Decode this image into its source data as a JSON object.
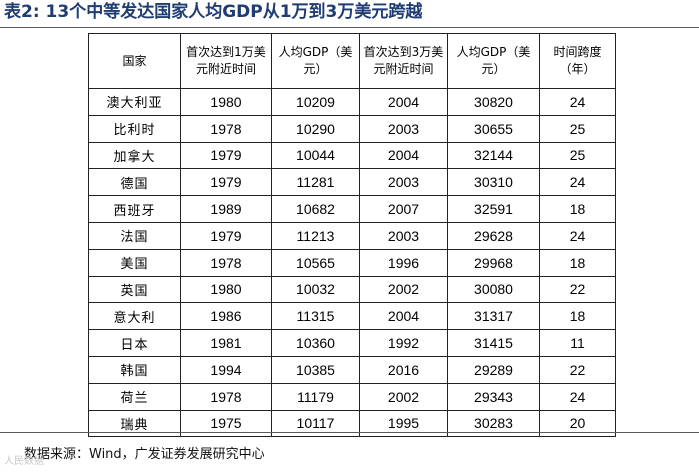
{
  "title": "表2:  13个中等发达国家人均GDP从1万到3万美元跨越",
  "table": {
    "headers": [
      "国家",
      "首次达到1万美元附近时间",
      "人均GDP（美元）",
      "首次达到3万美元附近时间",
      "人均GDP（美元）",
      "时间跨度（年）"
    ],
    "rows": [
      [
        "澳大利亚",
        "1980",
        "10209",
        "2004",
        "30820",
        "24"
      ],
      [
        "比利时",
        "1978",
        "10290",
        "2003",
        "30655",
        "25"
      ],
      [
        "加拿大",
        "1979",
        "10044",
        "2004",
        "32144",
        "25"
      ],
      [
        "德国",
        "1979",
        "11281",
        "2003",
        "30310",
        "24"
      ],
      [
        "西班牙",
        "1989",
        "10682",
        "2007",
        "32591",
        "18"
      ],
      [
        "法国",
        "1979",
        "11213",
        "2003",
        "29628",
        "24"
      ],
      [
        "美国",
        "1978",
        "10565",
        "1996",
        "29968",
        "18"
      ],
      [
        "英国",
        "1980",
        "10032",
        "2002",
        "30080",
        "22"
      ],
      [
        "意大利",
        "1986",
        "11315",
        "2004",
        "31317",
        "18"
      ],
      [
        "日本",
        "1981",
        "10360",
        "1992",
        "31415",
        "11"
      ],
      [
        "韩国",
        "1994",
        "10385",
        "2016",
        "29289",
        "22"
      ],
      [
        "荷兰",
        "1978",
        "11179",
        "2002",
        "29343",
        "24"
      ],
      [
        "瑞典",
        "1975",
        "10117",
        "1995",
        "30283",
        "20"
      ]
    ]
  },
  "footer": "数据来源：Wind，广发证券发展研究中心",
  "watermark": "人民数据"
}
